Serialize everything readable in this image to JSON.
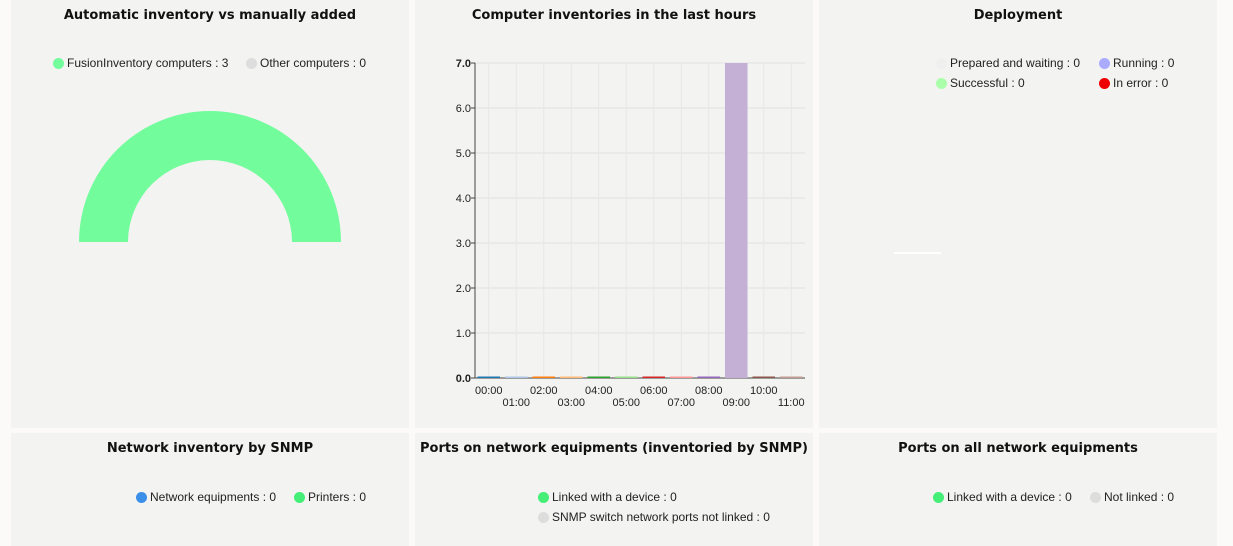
{
  "panels": {
    "auto_vs_manual": {
      "title": "Automatic inventory vs manually added",
      "legend": [
        {
          "label": "FusionInventory computers : 3",
          "color": "#73fc9c"
        },
        {
          "label": "Other computers : 0",
          "color": "#dddddd"
        }
      ]
    },
    "inventories_last_hours": {
      "title": "Computer inventories in the last hours"
    },
    "deployment": {
      "title": "Deployment",
      "legend": [
        {
          "label": "Prepared and waiting : 0",
          "color": "#efefef"
        },
        {
          "label": "Running : 0",
          "color": "#aaaaff"
        },
        {
          "label": "Successful : 0",
          "color": "#aaffaa"
        },
        {
          "label": "In error : 0",
          "color": "#ee0000"
        }
      ]
    },
    "network_snmp": {
      "title": "Network inventory by SNMP",
      "legend": [
        {
          "label": "Network equipments : 0",
          "color": "#3c8fe8"
        },
        {
          "label": "Printers : 0",
          "color": "#44ee77"
        }
      ]
    },
    "ports_snmp": {
      "title": "Ports on network equipments (inventoried by SNMP)",
      "legend": [
        {
          "label": "Linked with a device : 0",
          "color": "#44ee77"
        },
        {
          "label": "SNMP switch network ports not linked : 0",
          "color": "#dddddd"
        }
      ]
    },
    "ports_all": {
      "title": "Ports on all network equipments",
      "legend": [
        {
          "label": "Linked with a device : 0",
          "color": "#44ee77"
        },
        {
          "label": "Not linked : 0",
          "color": "#dddddd"
        }
      ]
    }
  },
  "chart_data": {
    "type": "bar",
    "categories": [
      "00:00",
      "01:00",
      "02:00",
      "03:00",
      "04:00",
      "05:00",
      "06:00",
      "07:00",
      "08:00",
      "09:00",
      "10:00",
      "11:00"
    ],
    "values": [
      0,
      0,
      0,
      0,
      0,
      0,
      0,
      0,
      0,
      7,
      0,
      0
    ],
    "colors": [
      "#1f77b4",
      "#aec7e8",
      "#ff7f0e",
      "#ffbb78",
      "#2ca02c",
      "#98df8a",
      "#d62728",
      "#ff9896",
      "#9467bd",
      "#c5b0d5",
      "#8c564b",
      "#c49c94"
    ],
    "yticks": [
      "0.0",
      "1.0",
      "2.0",
      "3.0",
      "4.0",
      "5.0",
      "6.0",
      "7.0"
    ],
    "ylim": [
      0,
      7
    ],
    "grid": true
  }
}
